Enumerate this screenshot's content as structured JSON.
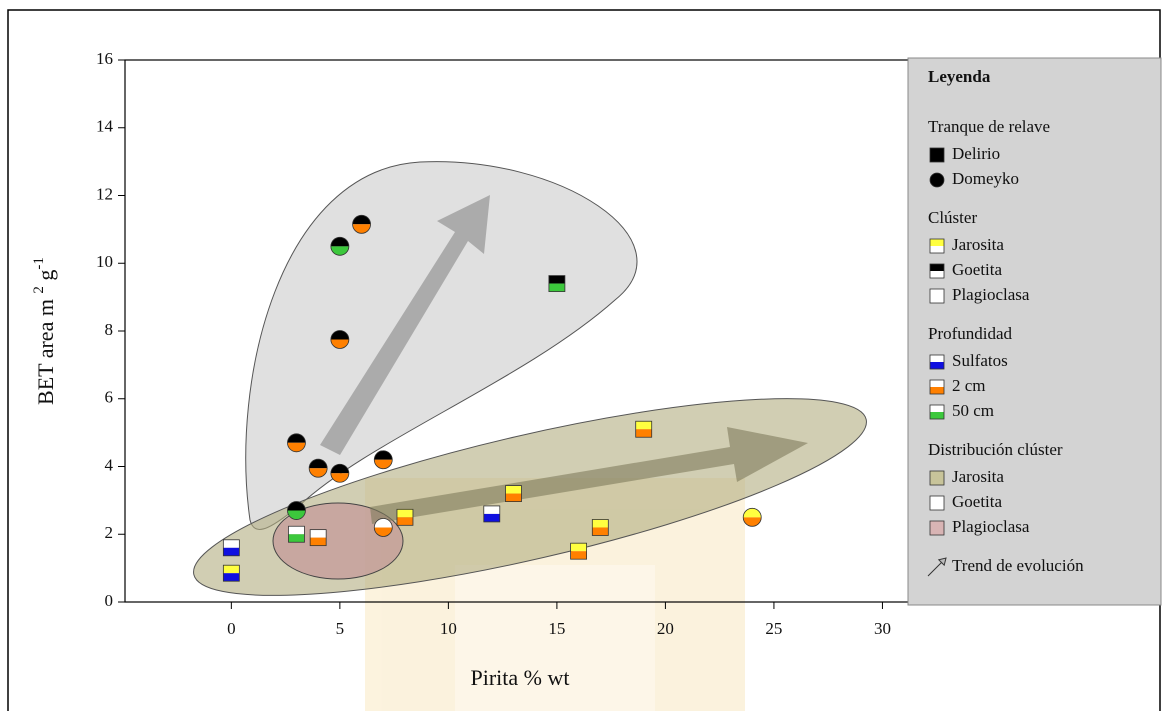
{
  "chart_data": {
    "type": "scatter",
    "xlabel": "Pirita % wt",
    "ylabel": [
      "BET area m",
      "2",
      "g",
      "-1"
    ],
    "xlim": [
      -4.9,
      31.5
    ],
    "ylim": [
      0,
      16
    ],
    "xticks": [
      0,
      5,
      10,
      15,
      20,
      25,
      30
    ],
    "yticks": [
      0,
      2,
      4,
      6,
      8,
      10,
      12,
      14,
      16
    ],
    "x": [
      0,
      0,
      3,
      4,
      8,
      12,
      13,
      15,
      16,
      17,
      19,
      3,
      3,
      4,
      5,
      5,
      5,
      6,
      7,
      7,
      24
    ],
    "values": [
      1.6,
      0.85,
      2.0,
      1.9,
      2.5,
      2.6,
      3.2,
      9.4,
      1.5,
      2.2,
      5.1,
      4.7,
      2.7,
      3.95,
      3.8,
      7.75,
      10.5,
      11.15,
      4.2,
      2.2,
      2.5
    ],
    "markers": [
      {
        "shape": "square",
        "top": "#ffffff",
        "bottom": "#1010e0"
      },
      {
        "shape": "square",
        "top": "#ffff40",
        "bottom": "#1010e0"
      },
      {
        "shape": "square",
        "top": "#ffffff",
        "bottom": "#3cc83c"
      },
      {
        "shape": "square",
        "top": "#ffffff",
        "bottom": "#ff8000"
      },
      {
        "shape": "square",
        "top": "#ffff40",
        "bottom": "#ff8000"
      },
      {
        "shape": "square",
        "top": "#ffffff",
        "bottom": "#1010e0"
      },
      {
        "shape": "square",
        "top": "#ffff40",
        "bottom": "#ff8000"
      },
      {
        "shape": "square",
        "top": "#000000",
        "bottom": "#3cc83c"
      },
      {
        "shape": "square",
        "top": "#ffff40",
        "bottom": "#ff8000"
      },
      {
        "shape": "square",
        "top": "#ffff40",
        "bottom": "#ff8000"
      },
      {
        "shape": "square",
        "top": "#ffff40",
        "bottom": "#ff8000"
      },
      {
        "shape": "circle",
        "top": "#000000",
        "bottom": "#ff8000"
      },
      {
        "shape": "circle",
        "top": "#000000",
        "bottom": "#3cc83c"
      },
      {
        "shape": "circle",
        "top": "#000000",
        "bottom": "#ff8000"
      },
      {
        "shape": "circle",
        "top": "#000000",
        "bottom": "#ff8000"
      },
      {
        "shape": "circle",
        "top": "#000000",
        "bottom": "#ff8000"
      },
      {
        "shape": "circle",
        "top": "#000000",
        "bottom": "#3cc83c"
      },
      {
        "shape": "circle",
        "top": "#000000",
        "bottom": "#ff8000"
      },
      {
        "shape": "circle",
        "top": "#000000",
        "bottom": "#ff8000"
      },
      {
        "shape": "circle",
        "top": "#ffffff",
        "bottom": "#ff8000"
      },
      {
        "shape": "circle",
        "top": "#ffff40",
        "bottom": "#ff8000"
      }
    ],
    "legend": {
      "title": "Leyenda",
      "groups": [
        {
          "title": "Tranque de relave",
          "items": [
            {
              "label": "Delirio",
              "shape": "square",
              "top": "#000000",
              "bottom": "#000000"
            },
            {
              "label": "Domeyko",
              "shape": "circle",
              "top": "#000000",
              "bottom": "#000000"
            }
          ]
        },
        {
          "title": "Clúster",
          "items": [
            {
              "label": "Jarosita",
              "shape": "square",
              "top": "#ffff40",
              "bottom": "#ffffff"
            },
            {
              "label": "Goetita",
              "shape": "square",
              "top": "#000000",
              "bottom": "#ffffff"
            },
            {
              "label": "Plagioclasa",
              "shape": "square",
              "top": "#ffffff",
              "bottom": "#ffffff"
            }
          ]
        },
        {
          "title": "Profundidad",
          "items": [
            {
              "label": "Sulfatos",
              "shape": "square",
              "top": "#ffffff",
              "bottom": "#1010e0"
            },
            {
              "label": "2 cm",
              "shape": "square",
              "top": "#ffffff",
              "bottom": "#ff8000"
            },
            {
              "label": "50 cm",
              "shape": "square",
              "top": "#ffffff",
              "bottom": "#3cc83c"
            }
          ]
        },
        {
          "title": "Distribución clúster",
          "items": [
            {
              "label": "Jarosita",
              "shape": "box",
              "top": "#c8c49a",
              "bottom": "#c8c49a"
            },
            {
              "label": "Goetita",
              "shape": "box",
              "top": "#ffffff",
              "bottom": "#ffffff"
            },
            {
              "label": "Plagioclasa",
              "shape": "box",
              "top": "#d8b4b4",
              "bottom": "#d8b4b4"
            }
          ]
        },
        {
          "title": null,
          "items": [
            {
              "label": "Trend de evolución",
              "shape": "arrow",
              "top": "#bbbbbb",
              "bottom": "#bbbbbb"
            }
          ]
        }
      ]
    }
  }
}
